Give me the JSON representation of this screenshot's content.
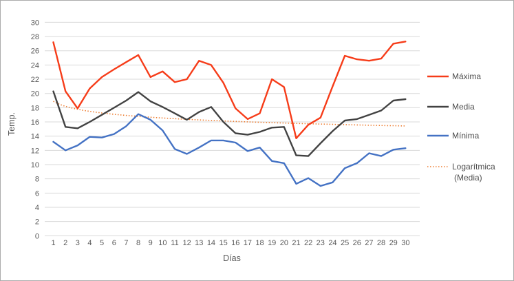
{
  "window": {
    "background": "#FFFFFF",
    "border_color": "#ABABAB"
  },
  "chart_data": {
    "type": "line",
    "title": "",
    "xlabel": "Días",
    "ylabel": "Temp.",
    "ylim": [
      0,
      30
    ],
    "ytick_step": 2,
    "grid": true,
    "gridline_color": "#D9D9D9",
    "axis_text_color": "#595959",
    "legend_position": "right",
    "categories": [
      1,
      2,
      3,
      4,
      5,
      6,
      7,
      8,
      9,
      10,
      11,
      12,
      13,
      14,
      15,
      16,
      17,
      18,
      19,
      20,
      21,
      22,
      23,
      24,
      25,
      26,
      27,
      28,
      29,
      30
    ],
    "series": [
      {
        "name": "Máxima",
        "color": "#F63C19",
        "values": [
          27.2,
          20.3,
          17.9,
          20.7,
          22.3,
          23.4,
          24.4,
          25.4,
          22.3,
          23.1,
          21.6,
          22.0,
          24.6,
          24.0,
          21.5,
          17.9,
          16.4,
          17.2,
          22.0,
          20.9,
          13.7,
          15.6,
          16.6,
          21.0,
          25.3,
          24.8,
          24.6,
          24.9,
          27.0,
          27.3
        ]
      },
      {
        "name": "Media",
        "color": "#424242",
        "values": [
          20.3,
          15.3,
          15.1,
          16.0,
          17.0,
          18.0,
          19.0,
          20.2,
          18.9,
          18.1,
          17.2,
          16.3,
          17.4,
          18.1,
          16.0,
          14.4,
          14.2,
          14.6,
          15.2,
          15.3,
          11.3,
          11.2,
          13.0,
          14.7,
          16.2,
          16.4,
          17.0,
          17.6,
          19.0,
          19.2
        ]
      },
      {
        "name": "Mínima",
        "color": "#4472C4",
        "values": [
          13.2,
          12.0,
          12.7,
          13.9,
          13.8,
          14.3,
          15.4,
          17.1,
          16.3,
          14.8,
          12.2,
          11.5,
          12.4,
          13.4,
          13.4,
          13.1,
          11.9,
          12.4,
          10.5,
          10.2,
          7.3,
          8.1,
          7.0,
          7.5,
          9.5,
          10.2,
          11.6,
          11.2,
          12.1,
          12.3
        ]
      }
    ],
    "trendline": {
      "name": "Logarítmica (Media)",
      "label_lines": [
        "Logarítmica",
        "(Media)"
      ],
      "based_on": "Media",
      "type": "logarithmic",
      "a": 18.9,
      "b": 1.02,
      "color": "#ED7D31",
      "style": "dotted"
    }
  }
}
